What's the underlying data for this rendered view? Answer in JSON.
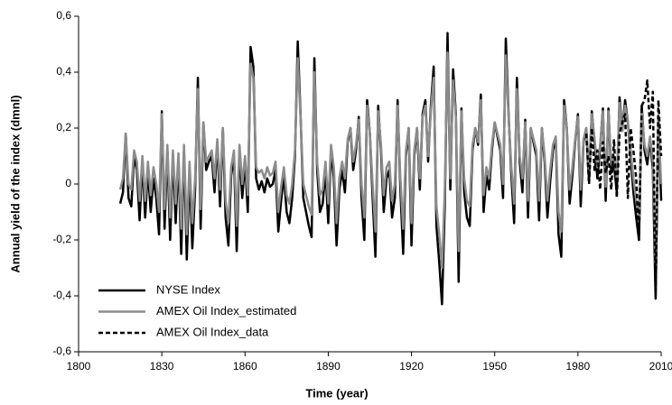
{
  "chart_data": {
    "type": "line",
    "xlabel": "Time (year)",
    "ylabel": "Annual yield of the index (dmnl)",
    "x": [
      1815,
      1816,
      1817,
      1818,
      1819,
      1820,
      1821,
      1822,
      1823,
      1824,
      1825,
      1826,
      1827,
      1828,
      1829,
      1830,
      1831,
      1832,
      1833,
      1834,
      1835,
      1836,
      1837,
      1838,
      1839,
      1840,
      1841,
      1842,
      1843,
      1844,
      1845,
      1846,
      1847,
      1848,
      1849,
      1850,
      1851,
      1852,
      1853,
      1854,
      1855,
      1856,
      1857,
      1858,
      1859,
      1860,
      1861,
      1862,
      1863,
      1864,
      1865,
      1866,
      1867,
      1868,
      1869,
      1870,
      1871,
      1872,
      1873,
      1874,
      1875,
      1876,
      1877,
      1878,
      1879,
      1880,
      1881,
      1882,
      1883,
      1884,
      1885,
      1886,
      1887,
      1888,
      1889,
      1890,
      1891,
      1892,
      1893,
      1894,
      1895,
      1896,
      1897,
      1898,
      1899,
      1900,
      1901,
      1902,
      1903,
      1904,
      1905,
      1906,
      1907,
      1908,
      1909,
      1910,
      1911,
      1912,
      1913,
      1914,
      1915,
      1916,
      1917,
      1918,
      1919,
      1920,
      1921,
      1922,
      1923,
      1924,
      1925,
      1926,
      1927,
      1928,
      1929,
      1930,
      1931,
      1932,
      1933,
      1934,
      1935,
      1936,
      1937,
      1938,
      1939,
      1940,
      1941,
      1942,
      1943,
      1944,
      1945,
      1946,
      1947,
      1948,
      1949,
      1950,
      1951,
      1952,
      1953,
      1954,
      1955,
      1956,
      1957,
      1958,
      1959,
      1960,
      1961,
      1962,
      1963,
      1964,
      1965,
      1966,
      1967,
      1968,
      1969,
      1970,
      1971,
      1972,
      1973,
      1974,
      1975,
      1976,
      1977,
      1978,
      1979,
      1980,
      1981,
      1982,
      1983,
      1984,
      1985,
      1986,
      1987,
      1988,
      1989,
      1990,
      1991,
      1992,
      1993,
      1994,
      1995,
      1996,
      1997,
      1998,
      1999,
      2000,
      2001,
      2002,
      2003,
      2004,
      2005,
      2006,
      2007,
      2008,
      2009,
      2010
    ],
    "series": [
      {
        "name": "NYSE Index",
        "color": "#000000",
        "dash": "solid",
        "values": [
          -0.07,
          -0.03,
          0.18,
          -0.05,
          -0.08,
          0.1,
          0.05,
          -0.13,
          0.08,
          -0.12,
          0.05,
          -0.1,
          0.02,
          -0.05,
          -0.18,
          0.26,
          -0.16,
          0.12,
          -0.2,
          0.1,
          -0.14,
          0.09,
          -0.25,
          0.12,
          -0.27,
          0.05,
          -0.23,
          -0.02,
          0.38,
          -0.16,
          0.22,
          0.05,
          0.08,
          0.1,
          -0.03,
          0.15,
          -0.08,
          0.2,
          -0.12,
          -0.22,
          0.03,
          0.1,
          -0.24,
          0.12,
          -0.05,
          0.08,
          -0.1,
          0.49,
          0.42,
          0.02,
          -0.02,
          0.01,
          -0.03,
          0.02,
          -0.01,
          0.0,
          0.05,
          -0.17,
          -0.06,
          0.03,
          -0.1,
          -0.14,
          -0.05,
          0.1,
          0.51,
          0.25,
          -0.05,
          -0.1,
          -0.15,
          -0.19,
          0.45,
          0.05,
          -0.1,
          -0.07,
          0.05,
          -0.14,
          0.12,
          0.02,
          -0.22,
          -0.02,
          0.05,
          -0.03,
          0.15,
          0.2,
          0.05,
          0.12,
          0.24,
          -0.05,
          -0.2,
          0.3,
          0.18,
          -0.05,
          -0.26,
          0.28,
          0.12,
          -0.1,
          0.02,
          0.05,
          -0.12,
          -0.05,
          0.3,
          -0.02,
          -0.25,
          0.1,
          0.2,
          -0.22,
          0.1,
          0.2,
          -0.02,
          0.25,
          0.3,
          0.08,
          0.28,
          0.42,
          -0.15,
          -0.28,
          -0.43,
          -0.08,
          0.54,
          -0.02,
          0.41,
          0.25,
          -0.35,
          0.27,
          -0.03,
          -0.12,
          -0.15,
          0.12,
          0.2,
          0.14,
          0.32,
          -0.1,
          0.03,
          -0.02,
          0.12,
          0.22,
          0.17,
          0.12,
          -0.05,
          0.52,
          0.25,
          0.03,
          -0.14,
          0.38,
          0.08,
          -0.03,
          0.23,
          -0.12,
          0.2,
          0.15,
          0.1,
          -0.13,
          0.2,
          0.08,
          -0.12,
          0.01,
          0.12,
          0.16,
          -0.18,
          -0.26,
          0.3,
          0.2,
          -0.07,
          0.03,
          0.15,
          0.25,
          -0.08,
          0.15,
          0.2,
          0.01,
          0.26,
          0.15,
          0.02,
          0.13,
          0.27,
          -0.06,
          0.27,
          0.04,
          0.07,
          -0.03,
          0.31,
          0.19,
          0.3,
          0.22,
          0.1,
          -0.03,
          -0.12,
          -0.2,
          0.28,
          0.12,
          0.07,
          0.16,
          0.05,
          -0.41,
          0.24,
          -0.06
        ]
      },
      {
        "name": "AMEX Oil Index_estimated",
        "color": "#8c8c8c",
        "dash": "solid",
        "values": [
          -0.02,
          0.02,
          0.18,
          0.0,
          -0.02,
          0.12,
          0.08,
          -0.06,
          0.1,
          -0.06,
          0.08,
          -0.04,
          0.06,
          0.0,
          -0.1,
          0.25,
          -0.09,
          0.14,
          -0.12,
          0.12,
          -0.07,
          0.11,
          -0.16,
          0.14,
          -0.18,
          0.08,
          -0.14,
          0.02,
          0.34,
          -0.09,
          0.22,
          0.08,
          0.1,
          0.12,
          0.02,
          0.16,
          -0.02,
          0.2,
          -0.06,
          -0.14,
          0.06,
          0.12,
          -0.15,
          0.14,
          0.0,
          0.1,
          -0.04,
          0.43,
          0.38,
          0.06,
          0.04,
          0.05,
          0.02,
          0.06,
          0.03,
          0.04,
          0.08,
          -0.1,
          -0.01,
          0.06,
          -0.04,
          -0.07,
          0.0,
          0.12,
          0.45,
          0.24,
          0.0,
          -0.04,
          -0.08,
          -0.11,
          0.4,
          0.08,
          -0.04,
          -0.02,
          0.08,
          -0.07,
          0.14,
          0.06,
          -0.14,
          0.02,
          0.08,
          0.02,
          0.16,
          0.2,
          0.08,
          0.14,
          0.23,
          0.0,
          -0.12,
          0.28,
          0.18,
          0.0,
          -0.17,
          0.26,
          0.14,
          -0.04,
          0.06,
          0.08,
          -0.06,
          0.0,
          0.28,
          0.02,
          -0.16,
          0.12,
          0.2,
          -0.14,
          0.12,
          0.2,
          0.02,
          0.24,
          0.28,
          0.1,
          0.26,
          0.38,
          -0.08,
          -0.18,
          -0.3,
          -0.02,
          0.47,
          0.02,
          0.37,
          0.24,
          -0.24,
          0.26,
          0.02,
          -0.06,
          -0.08,
          0.14,
          0.2,
          0.15,
          0.3,
          -0.04,
          0.06,
          0.02,
          0.14,
          0.22,
          0.18,
          0.14,
          0.0,
          0.46,
          0.24,
          0.06,
          -0.07,
          0.34,
          0.1,
          0.02,
          0.22,
          -0.06,
          0.2,
          0.16,
          0.12,
          -0.06,
          0.2,
          0.1,
          -0.06,
          0.05,
          0.14,
          0.17,
          -0.1,
          -0.17,
          0.28,
          0.2,
          -0.02,
          0.06,
          0.16,
          0.24,
          -0.02,
          0.16,
          0.2,
          0.05,
          0.25,
          0.16,
          0.06,
          0.14,
          0.26,
          -0.01,
          0.26,
          0.07,
          0.1,
          0.02,
          0.29,
          0.19,
          0.28,
          0.22,
          0.12,
          0.02,
          -0.06,
          -0.12,
          0.26,
          0.14,
          0.1,
          0.17,
          0.08,
          -0.29,
          0.23,
          0.0
        ]
      },
      {
        "name": "AMEX Oil Index_data",
        "color": "#000000",
        "dash": "dashed",
        "x": [
          1983,
          1984,
          1985,
          1986,
          1987,
          1988,
          1989,
          1990,
          1991,
          1992,
          1993,
          1994,
          1995,
          1996,
          1997,
          1998,
          1999,
          2000,
          2001,
          2002,
          2003,
          2004,
          2005,
          2006,
          2007,
          2008,
          2009,
          2010
        ],
        "values": [
          0.18,
          0.0,
          0.2,
          0.05,
          0.12,
          -0.02,
          0.15,
          0.04,
          0.1,
          -0.02,
          0.16,
          -0.05,
          0.18,
          0.22,
          0.25,
          -0.05,
          0.2,
          0.12,
          0.02,
          -0.2,
          0.28,
          0.3,
          0.37,
          0.2,
          0.33,
          -0.4,
          0.3,
          0.1
        ]
      }
    ],
    "xlim": [
      1800,
      2010
    ],
    "xticks": [
      1800,
      1830,
      1860,
      1890,
      1920,
      1950,
      1980,
      2010
    ],
    "ylim": [
      -0.6,
      0.6
    ],
    "yticks": [
      {
        "value": -0.6,
        "label": "-0,6"
      },
      {
        "value": -0.4,
        "label": "-0,4"
      },
      {
        "value": -0.2,
        "label": "-0,2"
      },
      0,
      {
        "value": 0.2,
        "label": "0,2"
      },
      {
        "value": 0.4,
        "label": "0,4"
      },
      {
        "value": 0.6,
        "label": "0,6"
      }
    ],
    "legend": "lower left"
  }
}
